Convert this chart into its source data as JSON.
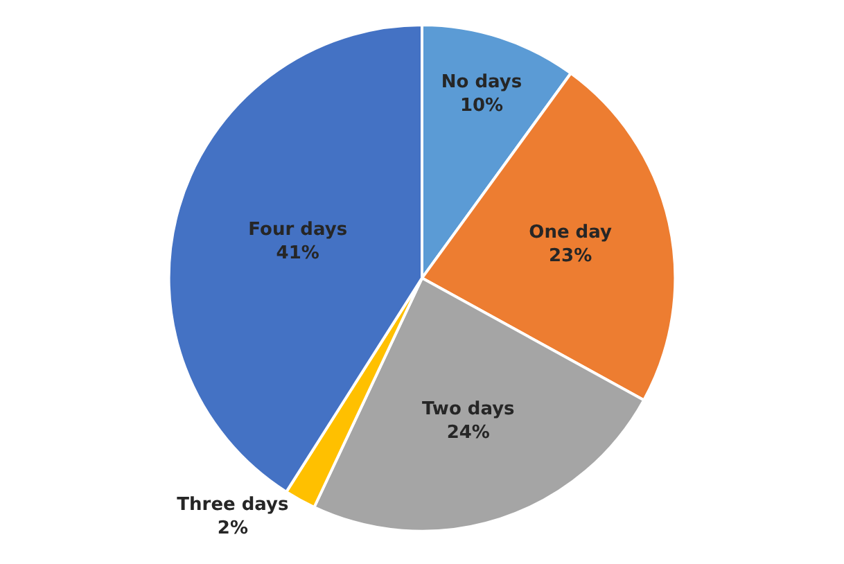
{
  "chart_data": {
    "type": "pie",
    "categories": [
      "No days",
      "One day",
      "Two days",
      "Three days",
      "Four days"
    ],
    "values": [
      10,
      23,
      24,
      2,
      41
    ],
    "value_labels": [
      "10%",
      "23%",
      "24%",
      "2%",
      "41%"
    ],
    "colors": [
      "#5b9bd5",
      "#ed7d31",
      "#a5a5a5",
      "#ffc000",
      "#4472c4"
    ],
    "legend": false
  }
}
